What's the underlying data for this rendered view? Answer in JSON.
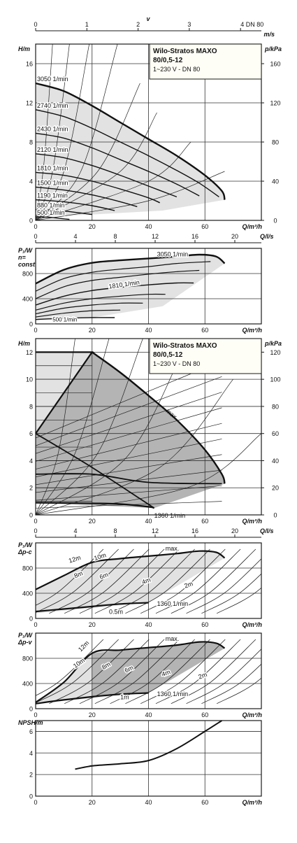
{
  "colors": {
    "frame": "#1a1a1a",
    "grid": "#333333",
    "curve": "#111111",
    "thin_curve": "#222222",
    "light_fill": "#e2e2e2",
    "dark_fill": "#b4b4b4",
    "legend_bg": "#fffef6"
  },
  "scale": {
    "v_label": "v",
    "v_ticks": [
      "0",
      "1",
      "2",
      "3",
      "4 DN 80"
    ],
    "v_unit": "m/s",
    "q_ls_ticks": [
      "0",
      "4",
      "8",
      "12",
      "16",
      "20"
    ],
    "q_ls_unit": "Q/l/s"
  },
  "legend": {
    "title_line1": "Wilo-Stratos MAXO",
    "title_line2": "80/0,5-12",
    "subtitle": "1~230 V - DN 80"
  },
  "chart_data": [
    {
      "id": "H_n_const",
      "type": "line",
      "ylabel": "H/m",
      "xlabel": "Q/m³/h",
      "ylabel_right": "p/kPa",
      "xlim": [
        0,
        80
      ],
      "ylim": [
        0,
        18
      ],
      "x_ticks": [
        "0",
        "20",
        "40",
        "60"
      ],
      "y_ticks": [
        "0",
        "4",
        "8",
        "12",
        "16"
      ],
      "y_right_ticks": [
        "0",
        "40",
        "80",
        "120",
        "160"
      ],
      "series": [
        {
          "name": "3050 1/min",
          "x": [
            0,
            10,
            20,
            30,
            40,
            50,
            60,
            66,
            67
          ],
          "y": [
            14.0,
            13.2,
            11.7,
            10.0,
            8.3,
            6.6,
            4.6,
            3.0,
            2.1
          ]
        },
        {
          "name": "2740 1/min",
          "x": [
            0,
            10,
            20,
            30,
            40,
            50,
            58,
            65
          ],
          "y": [
            11.3,
            10.6,
            9.4,
            8.0,
            6.6,
            5.1,
            3.8,
            2.4
          ]
        },
        {
          "name": "2430 1/min",
          "x": [
            0,
            10,
            20,
            30,
            40,
            50,
            58
          ],
          "y": [
            8.9,
            8.4,
            7.4,
            6.2,
            5.0,
            3.7,
            2.5
          ]
        },
        {
          "name": "2120 1/min",
          "x": [
            0,
            10,
            20,
            30,
            40,
            50
          ],
          "y": [
            6.8,
            6.4,
            5.6,
            4.6,
            3.5,
            2.4
          ]
        },
        {
          "name": "1810 1/min",
          "x": [
            0,
            10,
            20,
            30,
            40,
            44
          ],
          "y": [
            4.9,
            4.6,
            4.0,
            3.2,
            2.3,
            1.8
          ]
        },
        {
          "name": "1500 1/min",
          "x": [
            0,
            10,
            20,
            30,
            36
          ],
          "y": [
            3.4,
            3.1,
            2.6,
            1.9,
            1.4
          ]
        },
        {
          "name": "1190 1/min",
          "x": [
            0,
            10,
            20,
            28
          ],
          "y": [
            2.1,
            1.9,
            1.5,
            1.0
          ]
        },
        {
          "name": "880 1/min",
          "x": [
            0,
            10,
            20
          ],
          "y": [
            1.1,
            0.95,
            0.6
          ]
        },
        {
          "name": "500 1/min",
          "x": [
            0,
            5,
            12
          ],
          "y": [
            0.35,
            0.3,
            0.1
          ]
        }
      ],
      "limit_curves": [
        {
          "x": [
            0,
            3,
            6
          ],
          "y": [
            0,
            6,
            18
          ]
        },
        {
          "x": [
            0,
            6,
            12
          ],
          "y": [
            0,
            5,
            18
          ]
        },
        {
          "x": [
            0,
            10,
            19
          ],
          "y": [
            0,
            5,
            18
          ]
        },
        {
          "x": [
            0,
            16,
            29
          ],
          "y": [
            0,
            5,
            18
          ]
        },
        {
          "x": [
            0,
            22,
            37
          ],
          "y": [
            0,
            5,
            14
          ]
        },
        {
          "x": [
            0,
            30,
            43
          ],
          "y": [
            0,
            5,
            11
          ]
        },
        {
          "x": [
            0,
            40,
            55
          ],
          "y": [
            0,
            4,
            8
          ]
        },
        {
          "x": [
            0,
            40,
            67
          ],
          "y": [
            0,
            2,
            5
          ]
        }
      ],
      "curve_labels": [
        "3050 1/min",
        "2740 1/min",
        "2430 1/min",
        "2120 1/min",
        "1810 1/min",
        "1500 1/min",
        "1190 1/min",
        "880 1/min",
        "500 1/min"
      ]
    },
    {
      "id": "P1_n_const",
      "type": "line",
      "ylabel": "P₁/W",
      "ylabel2": "n=",
      "ylabel3": "const",
      "xlabel": "Q/m³/h",
      "xlim": [
        0,
        80
      ],
      "ylim": [
        0,
        1200
      ],
      "x_ticks": [
        "0",
        "20",
        "40",
        "60"
      ],
      "y_ticks": [
        "0",
        "400",
        "800"
      ],
      "series": [
        {
          "name": "3050 1/min",
          "x": [
            0,
            10,
            20,
            30,
            40,
            50,
            58,
            64,
            67
          ],
          "y": [
            640,
            860,
            970,
            1010,
            1040,
            1070,
            1100,
            1070,
            960
          ]
        },
        {
          "name": "1810 1/min",
          "x": [
            0,
            10,
            20,
            30,
            40,
            50,
            56
          ],
          "y": [
            300,
            440,
            530,
            580,
            620,
            650,
            650
          ]
        },
        {
          "name": "500 1/min",
          "x": [
            0,
            10,
            20,
            28
          ],
          "y": [
            70,
            90,
            100,
            100
          ]
        }
      ],
      "inner_curves": [
        {
          "x": [
            0,
            10,
            20,
            30,
            40,
            50,
            62
          ],
          "y": [
            520,
            720,
            820,
            870,
            910,
            960,
            990
          ]
        },
        {
          "x": [
            0,
            10,
            20,
            30,
            40,
            50,
            58
          ],
          "y": [
            400,
            590,
            690,
            740,
            790,
            830,
            850
          ]
        },
        {
          "x": [
            0,
            10,
            20,
            30,
            40,
            46
          ],
          "y": [
            220,
            330,
            400,
            440,
            470,
            470
          ]
        },
        {
          "x": [
            0,
            10,
            20,
            30,
            38
          ],
          "y": [
            160,
            250,
            300,
            330,
            330
          ]
        },
        {
          "x": [
            0,
            10,
            20,
            30
          ],
          "y": [
            110,
            170,
            210,
            220
          ]
        }
      ],
      "curve_labels": [
        "3050 1/min",
        "1810 1/min",
        "500 1/min"
      ]
    },
    {
      "id": "H_control_modes",
      "type": "area",
      "ylabel": "H/m",
      "xlabel": "Q/m³/h",
      "ylabel_right": "p/kPa",
      "xlim": [
        0,
        80
      ],
      "ylim": [
        0,
        13
      ],
      "x_ticks": [
        "0",
        "20",
        "40",
        "60"
      ],
      "y_ticks": [
        "0",
        "2",
        "4",
        "6",
        "8",
        "10",
        "12"
      ],
      "y_right_ticks": [
        "0",
        "20",
        "40",
        "60",
        "80",
        "100",
        "120"
      ],
      "max_curve": {
        "x": [
          0,
          20,
          30,
          40,
          50,
          60,
          66,
          67
        ],
        "y": [
          12.0,
          12.0,
          10.5,
          8.8,
          7.0,
          4.8,
          3.0,
          2.3
        ]
      },
      "min_curve": {
        "name": "1360 1/min",
        "x": [
          0,
          20,
          30,
          40,
          42
        ],
        "y": [
          0.9,
          0.85,
          0.8,
          0.6,
          0.5
        ]
      },
      "curve_labels": [
        "max.",
        "1360 1/min"
      ]
    },
    {
      "id": "P1_dp_c",
      "type": "line",
      "ylabel": "P₁/W",
      "ylabel2": "Δp-c",
      "xlabel": "Q/m³/h",
      "xlim": [
        0,
        80
      ],
      "ylim": [
        0,
        1200
      ],
      "x_ticks": [
        "0",
        "20",
        "40",
        "60"
      ],
      "y_ticks": [
        "0",
        "400",
        "800"
      ],
      "series": [
        {
          "name": "max.",
          "x": [
            0,
            10,
            20,
            30,
            40,
            50,
            58,
            64,
            67
          ],
          "y": [
            460,
            680,
            890,
            950,
            990,
            1030,
            1070,
            1050,
            960
          ]
        },
        {
          "name": "1360 1/min",
          "x": [
            0,
            10,
            20,
            30,
            40
          ],
          "y": [
            110,
            150,
            190,
            230,
            250
          ]
        }
      ],
      "curve_labels": [
        "12m",
        "10m",
        "8m",
        "6m",
        "4m",
        "2m",
        "0.5m",
        "max.",
        "1360 1/min"
      ]
    },
    {
      "id": "P1_dp_v",
      "type": "line",
      "ylabel": "P₁/W",
      "ylabel2": "Δp-v",
      "xlabel": "Q/m³/h",
      "xlim": [
        0,
        80
      ],
      "ylim": [
        0,
        1200
      ],
      "x_ticks": [
        "0",
        "20",
        "40",
        "60"
      ],
      "y_ticks": [
        "0",
        "400",
        "800"
      ],
      "series": [
        {
          "name": "max.",
          "x": [
            0,
            10,
            20,
            30,
            40,
            50,
            58,
            64,
            67
          ],
          "y": [
            100,
            420,
            880,
            930,
            970,
            1010,
            1060,
            1040,
            960
          ]
        },
        {
          "name": "1360 1/min",
          "x": [
            0,
            10,
            20,
            30,
            40
          ],
          "y": [
            80,
            140,
            190,
            230,
            250
          ]
        }
      ],
      "curve_labels": [
        "12m",
        "10m",
        "8m",
        "6m",
        "4m",
        "2m",
        "1m",
        "max.",
        "1360 1/min"
      ]
    },
    {
      "id": "NPSH",
      "type": "line",
      "ylabel": "NPSH/m",
      "xlabel": "Q/m³/h",
      "xlim": [
        0,
        80
      ],
      "ylim": [
        0,
        7
      ],
      "x_ticks": [
        "0",
        "20",
        "40",
        "60"
      ],
      "y_ticks": [
        "0",
        "2",
        "4",
        "6"
      ],
      "series": [
        {
          "name": "NPSH",
          "x": [
            14,
            20,
            30,
            40,
            50,
            60,
            66
          ],
          "y": [
            2.5,
            2.8,
            3.0,
            3.3,
            4.4,
            6.0,
            7.0
          ]
        }
      ]
    }
  ]
}
